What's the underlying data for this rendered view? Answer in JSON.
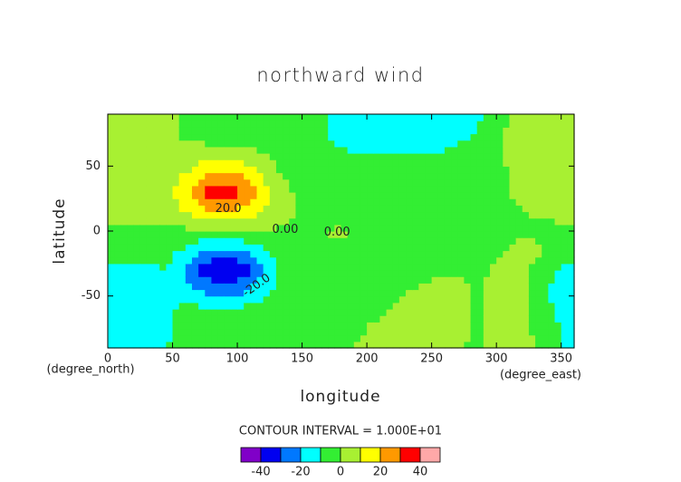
{
  "chart_data": {
    "type": "contour",
    "title": "northward wind",
    "xlabel": "longitude",
    "ylabel": "latitude",
    "x_unit": "(degree_east)",
    "y_unit": "(degree_north)",
    "xlim": [
      0,
      360
    ],
    "ylim": [
      -90,
      90
    ],
    "xticks": [
      0,
      50,
      100,
      150,
      200,
      250,
      300,
      350
    ],
    "yticks": [
      -50,
      0,
      50
    ],
    "grid_x": [
      0,
      15,
      30,
      45,
      60,
      75,
      90,
      105,
      120,
      135,
      150,
      165,
      180,
      195,
      210,
      225,
      240,
      255,
      270,
      285,
      300,
      315,
      330,
      345,
      360
    ],
    "grid_y": [
      -90,
      -75,
      -60,
      -45,
      -30,
      -15,
      0,
      15,
      30,
      45,
      60,
      75,
      90
    ],
    "z": [
      [
        -14,
        -13,
        -12,
        -10,
        -8,
        -6,
        -4,
        -3,
        -2,
        -2,
        -2,
        -2,
        -1,
        1,
        3,
        4,
        4,
        3,
        1,
        -2,
        2,
        3,
        0,
        -6,
        -14
      ],
      [
        -14,
        -14,
        -13,
        -11,
        -9,
        -7,
        -5,
        -4,
        -3,
        -3,
        -3,
        -3,
        -2,
        -1,
        2,
        4,
        5,
        5,
        3,
        -2,
        2,
        4,
        -1,
        -8,
        -14
      ],
      [
        -14,
        -14,
        -13,
        -11,
        -8,
        -8,
        -8,
        -8,
        -6,
        -4,
        -3,
        -3,
        -3,
        -2,
        -2,
        2,
        5,
        6,
        4,
        -1,
        2,
        4,
        -3,
        -11,
        -14
      ],
      [
        -13,
        -13,
        -12,
        -10,
        -15,
        -22,
        -25,
        -22,
        -14,
        -5,
        -3,
        -3,
        -3,
        -3,
        -3,
        -2,
        1,
        4,
        3,
        -1,
        2,
        3,
        -3,
        -12,
        -13
      ],
      [
        -12,
        -12,
        -12,
        -10,
        -22,
        -35,
        -42,
        -36,
        -20,
        -6,
        -3,
        -3,
        -3,
        -3,
        -3,
        -3,
        -3,
        -3,
        -2,
        -2,
        1,
        3,
        -2,
        -11,
        -12
      ],
      [
        -4,
        -5,
        -6,
        -6,
        -12,
        -20,
        -24,
        -20,
        -12,
        -4,
        -2,
        -2,
        -2,
        -2,
        -2,
        -2,
        -2,
        -2,
        -2,
        -2,
        -1,
        1,
        2,
        -3,
        -5
      ],
      [
        -1,
        -1,
        -1,
        -1,
        -2,
        -2,
        -2,
        -1,
        -1,
        -1,
        -1,
        0,
        1,
        -2,
        -3,
        -3,
        -3,
        -2,
        -1,
        -1,
        -1,
        -1,
        -2,
        -2,
        -1
      ],
      [
        3,
        4,
        4,
        4,
        10,
        18,
        20,
        17,
        9,
        2,
        -1,
        -3,
        -3,
        -3,
        -3,
        -3,
        -3,
        -3,
        -3,
        -3,
        -2,
        -1,
        1,
        2,
        3
      ],
      [
        -1,
        2,
        3,
        6,
        18,
        32,
        36,
        30,
        15,
        2,
        -2,
        -3,
        -4,
        -4,
        -4,
        -4,
        -4,
        -4,
        -3,
        -3,
        -2,
        1,
        3,
        3,
        -1
      ],
      [
        4,
        3,
        2,
        3,
        10,
        18,
        22,
        18,
        8,
        -1,
        -3,
        -4,
        -5,
        -5,
        -5,
        -5,
        -5,
        -5,
        -4,
        -3,
        -2,
        1,
        4,
        4,
        4
      ],
      [
        6,
        5,
        3,
        1,
        2,
        4,
        4,
        3,
        0,
        -3,
        -5,
        -7,
        -9,
        -10,
        -11,
        -11,
        -11,
        -10,
        -8,
        -4,
        -2,
        3,
        6,
        5,
        6
      ],
      [
        5,
        5,
        4,
        3,
        -2,
        -4,
        -5,
        -5,
        -4,
        -4,
        -6,
        -9,
        -12,
        -14,
        -15,
        -15,
        -15,
        -14,
        -13,
        -10,
        -3,
        4,
        5,
        5,
        5
      ],
      [
        5,
        5,
        5,
        4,
        -2,
        -5,
        -5,
        -5,
        -4,
        -4,
        -5,
        -8,
        -12,
        -14,
        -15,
        -15,
        -15,
        -15,
        -14,
        -12,
        -5,
        3,
        5,
        5,
        5
      ]
    ],
    "levels": [
      -50,
      -40,
      -30,
      -20,
      -10,
      0,
      10,
      20,
      30,
      40,
      50
    ],
    "level_colors": [
      "#8000c8",
      "#0000f0",
      "#0078ff",
      "#00ffff",
      "#33ee33",
      "#a8f032",
      "#ffff00",
      "#ff9900",
      "#ff0000",
      "#ffa8a8"
    ],
    "contour_labels": [
      {
        "label": "20.0",
        "value": 20,
        "x": 93,
        "y": 17
      },
      {
        "label": "0.00",
        "value": 0,
        "x": 137,
        "y": 1
      },
      {
        "label": "0.00",
        "value": 0,
        "x": 177,
        "y": -1
      },
      {
        "label": "-20.0",
        "value": -20,
        "x": 115,
        "y": -42
      }
    ],
    "contour_interval": "CONTOUR INTERVAL = 1.000E+01",
    "colorbar_ticks": [
      -40,
      -20,
      0,
      20,
      40
    ]
  }
}
